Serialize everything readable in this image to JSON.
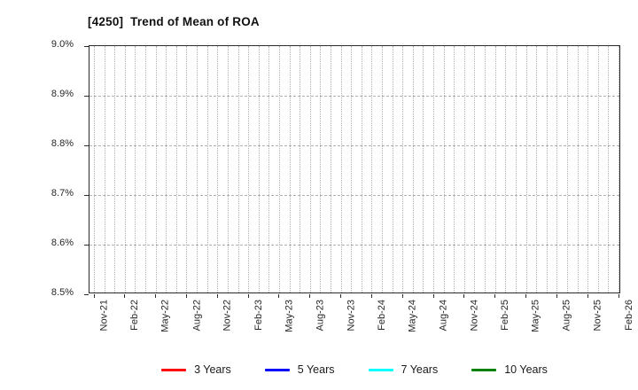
{
  "header": {
    "title": "[4250]  Trend of Mean of ROA"
  },
  "style": {
    "background": "#ffffff",
    "axis_color": "#2b2b2b",
    "grid_color": "#b0b0b0",
    "text_color": "#262626",
    "title_color": "#111111"
  },
  "chart_data": {
    "type": "line",
    "title": "[4250]  Trend of Mean of ROA",
    "xlabel": "",
    "ylabel": "",
    "y_unit": "%",
    "ylim": [
      8.5,
      9.0
    ],
    "y_tick_labels": [
      "9.0%",
      "8.9%",
      "8.8%",
      "8.7%",
      "8.6%",
      "8.5%"
    ],
    "categories": [
      "Nov-21",
      "Feb-22",
      "May-22",
      "Aug-22",
      "Nov-22",
      "Feb-23",
      "May-23",
      "Aug-23",
      "Nov-23",
      "Feb-24",
      "May-24",
      "Aug-24",
      "Nov-24",
      "Feb-25",
      "May-25",
      "Aug-25",
      "Nov-25",
      "Feb-26"
    ],
    "x_gridline_count": 52,
    "x_ticks_every_n_gridlines": 3,
    "grid": true,
    "legend_position": "bottom",
    "series": [
      {
        "name": "3 Years",
        "color": "#ff0000",
        "values": []
      },
      {
        "name": "5 Years",
        "color": "#0000ff",
        "values": []
      },
      {
        "name": "7 Years",
        "color": "#00ffff",
        "values": []
      },
      {
        "name": "10 Years",
        "color": "#008000",
        "values": []
      }
    ]
  }
}
